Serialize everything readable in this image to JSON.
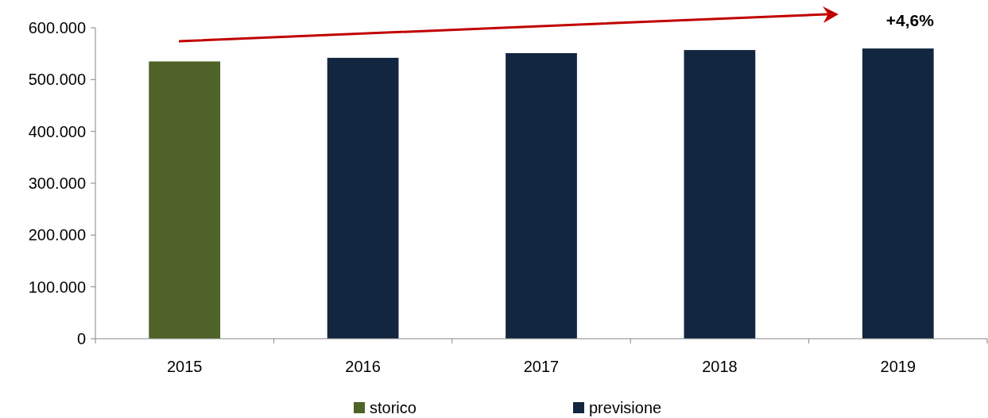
{
  "chart_data": {
    "type": "bar",
    "categories": [
      "2015",
      "2016",
      "2017",
      "2018",
      "2019"
    ],
    "stacked": true,
    "series": [
      {
        "name": "storico",
        "color": "#4f6228",
        "values": [
          535000,
          null,
          null,
          null,
          null
        ]
      },
      {
        "name": "previsione",
        "color": "#132640",
        "values": [
          null,
          542000,
          551000,
          557000,
          560000
        ]
      }
    ],
    "ylim": [
      0,
      600000
    ],
    "yticks": [
      0,
      {
        "value": 100000,
        "label": "100.000"
      },
      {
        "value": 200000,
        "label": "200.000"
      },
      {
        "value": 300000,
        "label": "300.000"
      },
      {
        "value": 400000,
        "label": "400.000"
      },
      {
        "value": 500000,
        "label": "500.000"
      },
      {
        "value": 600000,
        "label": "600.000"
      }
    ],
    "grid": false,
    "legend": "bottom",
    "annotations": [
      "+4,6%"
    ]
  }
}
